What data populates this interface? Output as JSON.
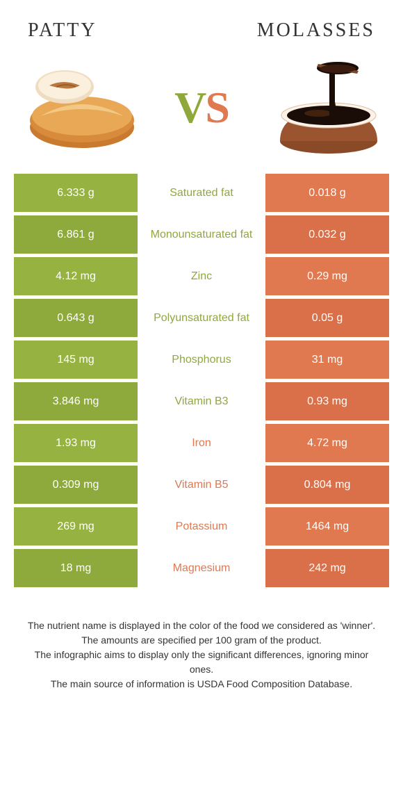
{
  "colors": {
    "left_bg": "#96b240",
    "left_bg_alt": "#8ea93c",
    "right_bg": "#e07850",
    "right_bg_alt": "#d9704a",
    "mid_text_green": "#8fa83b",
    "mid_text_orange": "#e07850",
    "title_color": "#333333"
  },
  "header": {
    "left_title": "Patty",
    "right_title": "Molasses",
    "vs_v": "V",
    "vs_s": "S"
  },
  "rows": [
    {
      "left": "6.333 g",
      "mid": "Saturated fat",
      "right": "0.018 g",
      "winner": "left"
    },
    {
      "left": "6.861 g",
      "mid": "Monounsaturated fat",
      "right": "0.032 g",
      "winner": "left"
    },
    {
      "left": "4.12 mg",
      "mid": "Zinc",
      "right": "0.29 mg",
      "winner": "left"
    },
    {
      "left": "0.643 g",
      "mid": "Polyunsaturated fat",
      "right": "0.05 g",
      "winner": "left"
    },
    {
      "left": "145 mg",
      "mid": "Phosphorus",
      "right": "31 mg",
      "winner": "left"
    },
    {
      "left": "3.846 mg",
      "mid": "Vitamin B3",
      "right": "0.93 mg",
      "winner": "left"
    },
    {
      "left": "1.93 mg",
      "mid": "Iron",
      "right": "4.72 mg",
      "winner": "right"
    },
    {
      "left": "0.309 mg",
      "mid": "Vitamin B5",
      "right": "0.804 mg",
      "winner": "right"
    },
    {
      "left": "269 mg",
      "mid": "Potassium",
      "right": "1464 mg",
      "winner": "right"
    },
    {
      "left": "18 mg",
      "mid": "Magnesium",
      "right": "242 mg",
      "winner": "right"
    }
  ],
  "footnotes": [
    "The nutrient name is displayed in the color of the food we considered as 'winner'.",
    "The amounts are specified per 100 gram of the product.",
    "The infographic aims to display only the significant differences, ignoring minor ones.",
    "The main source of information is USDA Food Composition Database."
  ]
}
